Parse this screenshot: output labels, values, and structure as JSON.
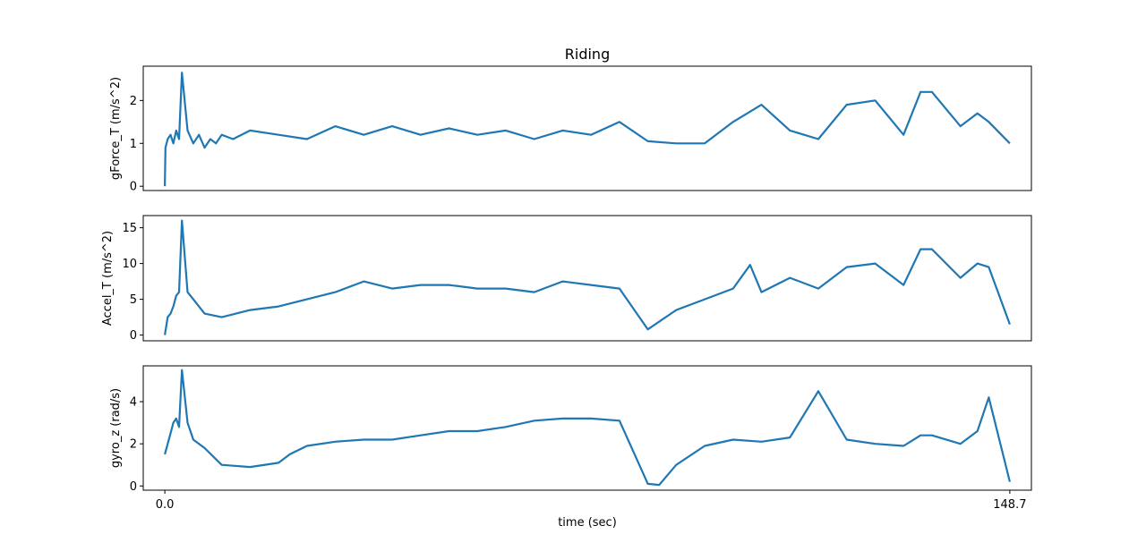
{
  "chart_data": {
    "type": "line",
    "title": "Riding",
    "xlabel": "time (sec)",
    "xlim": [
      -3.8,
      152.5
    ],
    "xticks": [
      0.0,
      148.7
    ],
    "xtick_labels": [
      "0.0",
      "148.7"
    ],
    "grid": false,
    "color": "#1f77b4",
    "subplots": [
      {
        "ylabel": "gForce_T  (m/s^2)",
        "ylim": [
          -0.1,
          2.8
        ],
        "yticks": [
          0,
          1,
          2
        ],
        "series": [
          {
            "x": [
              0.0,
              0.1,
              0.5,
              1.0,
              1.5,
              2.0,
              2.5,
              3.0,
              4.0,
              5.0,
              6.0,
              7.0,
              8.0,
              9.0,
              10.0,
              12.0,
              15.0,
              20.0,
              25.0,
              30.0,
              35.0,
              40.0,
              45.0,
              50.0,
              55.0,
              60.0,
              65.0,
              70.0,
              75.0,
              80.0,
              85.0,
              90.0,
              95.0,
              100.0,
              105.0,
              110.0,
              115.0,
              120.0,
              125.0,
              130.0,
              133.0,
              135.0,
              140.0,
              143.0,
              145.0,
              148.7
            ],
            "y": [
              0.0,
              0.9,
              1.1,
              1.2,
              1.0,
              1.3,
              1.1,
              2.65,
              1.3,
              1.0,
              1.2,
              0.9,
              1.1,
              1.0,
              1.2,
              1.1,
              1.3,
              1.2,
              1.1,
              1.4,
              1.2,
              1.4,
              1.2,
              1.35,
              1.2,
              1.3,
              1.1,
              1.3,
              1.2,
              1.5,
              1.05,
              1.0,
              1.0,
              1.5,
              1.9,
              1.3,
              1.1,
              1.9,
              2.0,
              1.2,
              2.2,
              2.2,
              1.4,
              1.7,
              1.5,
              1.0
            ]
          }
        ]
      },
      {
        "ylabel": "Accel_T  (m/s^2)",
        "ylim": [
          -0.8,
          16.7
        ],
        "yticks": [
          0,
          5,
          10,
          15
        ],
        "series": [
          {
            "x": [
              0.0,
              0.5,
              1.0,
              1.5,
              2.0,
              2.5,
              3.0,
              4.0,
              5.0,
              7.0,
              10.0,
              15.0,
              20.0,
              25.0,
              30.0,
              35.0,
              40.0,
              45.0,
              50.0,
              55.0,
              60.0,
              65.0,
              70.0,
              75.0,
              80.0,
              85.0,
              90.0,
              95.0,
              100.0,
              103.0,
              105.0,
              110.0,
              115.0,
              120.0,
              125.0,
              130.0,
              133.0,
              135.0,
              140.0,
              143.0,
              145.0,
              148.7
            ],
            "y": [
              0.0,
              2.5,
              3.0,
              4.0,
              5.5,
              6.0,
              16.0,
              6.0,
              5.0,
              3.0,
              2.5,
              3.5,
              4.0,
              5.0,
              6.0,
              7.5,
              6.5,
              7.0,
              7.0,
              6.5,
              6.5,
              6.0,
              7.5,
              7.0,
              6.5,
              0.8,
              3.5,
              5.0,
              6.5,
              9.8,
              6.0,
              8.0,
              6.5,
              9.5,
              10.0,
              7.0,
              12.0,
              12.0,
              8.0,
              10.0,
              9.5,
              1.5
            ]
          }
        ]
      },
      {
        "ylabel": "gyro_z  (rad/s)",
        "ylim": [
          -0.2,
          5.7
        ],
        "yticks": [
          0,
          2,
          4
        ],
        "series": [
          {
            "x": [
              0.0,
              0.5,
              1.0,
              1.5,
              2.0,
              2.5,
              3.0,
              4.0,
              5.0,
              7.0,
              10.0,
              15.0,
              20.0,
              22.0,
              25.0,
              30.0,
              35.0,
              40.0,
              45.0,
              50.0,
              55.0,
              60.0,
              65.0,
              70.0,
              75.0,
              80.0,
              85.0,
              87.0,
              90.0,
              95.0,
              100.0,
              105.0,
              110.0,
              115.0,
              120.0,
              125.0,
              130.0,
              133.0,
              135.0,
              140.0,
              143.0,
              145.0,
              148.7
            ],
            "y": [
              1.5,
              2.0,
              2.5,
              3.0,
              3.2,
              2.8,
              5.5,
              3.0,
              2.2,
              1.8,
              1.0,
              0.9,
              1.1,
              1.5,
              1.9,
              2.1,
              2.2,
              2.2,
              2.4,
              2.6,
              2.6,
              2.8,
              3.1,
              3.2,
              3.2,
              3.1,
              0.1,
              0.05,
              1.0,
              1.9,
              2.2,
              2.1,
              2.3,
              4.5,
              2.2,
              2.0,
              1.9,
              2.4,
              2.4,
              2.0,
              2.6,
              4.2,
              0.2
            ]
          }
        ]
      }
    ]
  }
}
